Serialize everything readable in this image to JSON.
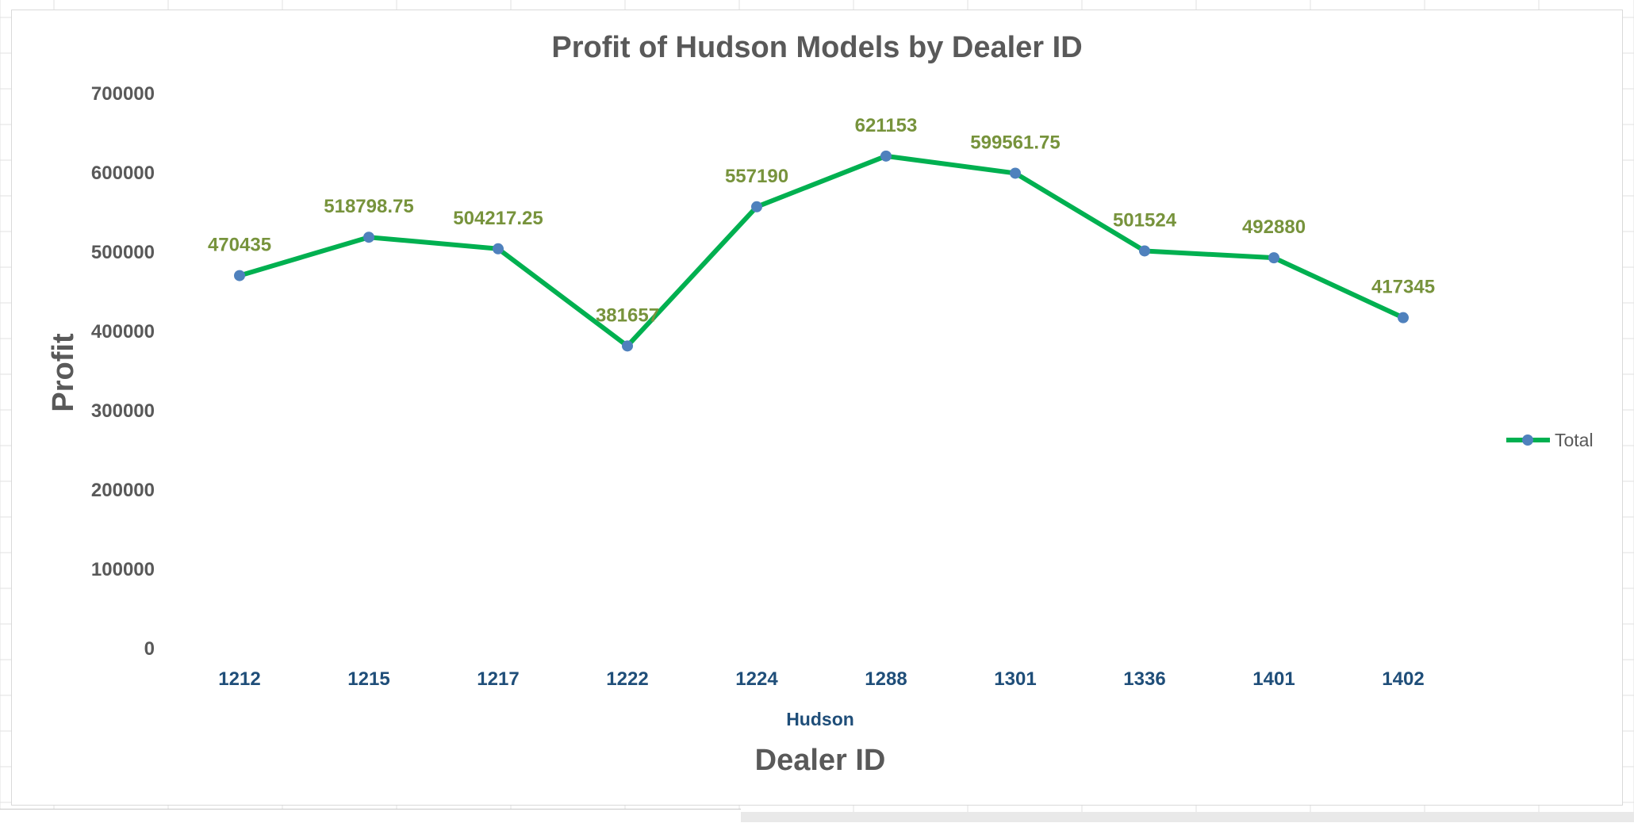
{
  "chart_data": {
    "type": "line",
    "title": "Profit of Hudson Models by Dealer ID",
    "xlabel": "Dealer ID",
    "ylabel": "Profit",
    "x_group_label": "Hudson",
    "categories": [
      "1212",
      "1215",
      "1217",
      "1222",
      "1224",
      "1288",
      "1301",
      "1336",
      "1401",
      "1402"
    ],
    "series": [
      {
        "name": "Total",
        "values": [
          470435,
          518798.75,
          504217.25,
          381657,
          557190,
          621153,
          599561.75,
          501524,
          492880,
          417345
        ],
        "labels": [
          "470435",
          "518798.75",
          "504217.25",
          "381657",
          "557190",
          "621153",
          "599561.75",
          "501524",
          "492880",
          "417345"
        ],
        "line_color": "#00b050",
        "marker_color": "#4f81bd"
      }
    ],
    "yticks": [
      "0",
      "100000",
      "200000",
      "300000",
      "400000",
      "500000",
      "600000",
      "700000"
    ],
    "ylim": [
      0,
      700000
    ],
    "grid": false,
    "legend_position": "right",
    "colors": {
      "title": "#595959",
      "axis_title": "#595959",
      "ytick": "#595959",
      "xtick": "#1f4e79",
      "data_label": "#77933c"
    }
  }
}
